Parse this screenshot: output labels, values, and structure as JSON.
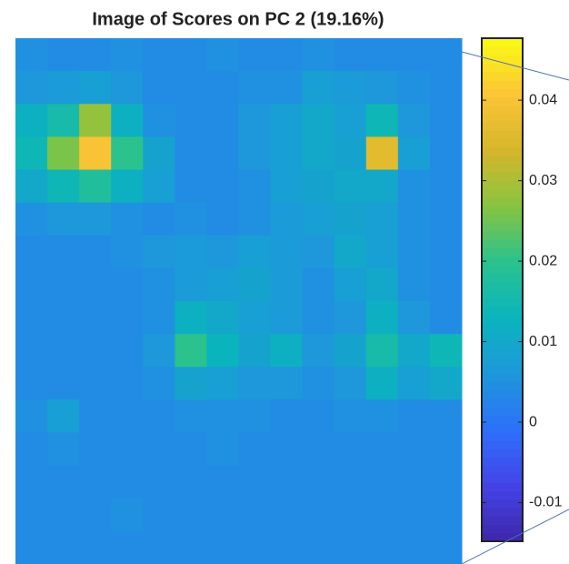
{
  "chart_data": {
    "type": "heatmap",
    "title": "Image of Scores on PC 2 (19.16%)",
    "colormap": [
      "#3e26a8",
      "#4443e9",
      "#2d70fa",
      "#1e97db",
      "#0ab4bd",
      "#2ac28e",
      "#87c440",
      "#d6b62b",
      "#fcc536",
      "#f9fb15"
    ],
    "values": [
      [
        0.005,
        0.004,
        0.004,
        0.005,
        0.004,
        0.004,
        0.005,
        0.004,
        0.004,
        0.005,
        0.004,
        0.004,
        0.004,
        0.004
      ],
      [
        0.006,
        0.007,
        0.008,
        0.006,
        0.004,
        0.004,
        0.004,
        0.005,
        0.005,
        0.008,
        0.007,
        0.006,
        0.005,
        0.004
      ],
      [
        0.012,
        0.016,
        0.028,
        0.012,
        0.005,
        0.004,
        0.004,
        0.006,
        0.008,
        0.01,
        0.008,
        0.014,
        0.006,
        0.004
      ],
      [
        0.014,
        0.026,
        0.04,
        0.02,
        0.009,
        0.004,
        0.004,
        0.006,
        0.008,
        0.01,
        0.009,
        0.036,
        0.008,
        0.004
      ],
      [
        0.01,
        0.014,
        0.018,
        0.012,
        0.008,
        0.004,
        0.004,
        0.005,
        0.008,
        0.009,
        0.01,
        0.01,
        0.005,
        0.004
      ],
      [
        0.005,
        0.006,
        0.006,
        0.005,
        0.004,
        0.005,
        0.004,
        0.005,
        0.007,
        0.008,
        0.009,
        0.008,
        0.005,
        0.004
      ],
      [
        0.004,
        0.004,
        0.004,
        0.005,
        0.006,
        0.007,
        0.006,
        0.008,
        0.007,
        0.006,
        0.01,
        0.008,
        0.005,
        0.004
      ],
      [
        0.004,
        0.004,
        0.004,
        0.004,
        0.005,
        0.007,
        0.008,
        0.009,
        0.007,
        0.005,
        0.008,
        0.01,
        0.005,
        0.004
      ],
      [
        0.004,
        0.004,
        0.004,
        0.004,
        0.005,
        0.012,
        0.01,
        0.008,
        0.007,
        0.005,
        0.006,
        0.012,
        0.006,
        0.004
      ],
      [
        0.004,
        0.004,
        0.004,
        0.004,
        0.006,
        0.02,
        0.013,
        0.009,
        0.012,
        0.006,
        0.009,
        0.016,
        0.01,
        0.014
      ],
      [
        0.004,
        0.004,
        0.004,
        0.004,
        0.005,
        0.009,
        0.008,
        0.006,
        0.006,
        0.005,
        0.006,
        0.012,
        0.008,
        0.01
      ],
      [
        0.005,
        0.008,
        0.004,
        0.004,
        0.004,
        0.005,
        0.005,
        0.005,
        0.004,
        0.004,
        0.005,
        0.005,
        0.004,
        0.004
      ],
      [
        0.004,
        0.005,
        0.004,
        0.004,
        0.004,
        0.004,
        0.005,
        0.004,
        0.004,
        0.004,
        0.004,
        0.004,
        0.004,
        0.004
      ],
      [
        0.004,
        0.004,
        0.004,
        0.004,
        0.004,
        0.004,
        0.004,
        0.004,
        0.004,
        0.004,
        0.004,
        0.004,
        0.004,
        0.004
      ],
      [
        0.004,
        0.004,
        0.004,
        0.005,
        0.004,
        0.004,
        0.004,
        0.004,
        0.004,
        0.004,
        0.004,
        0.004,
        0.004,
        0.004
      ],
      [
        0.004,
        0.004,
        0.004,
        0.004,
        0.004,
        0.004,
        0.004,
        0.004,
        0.004,
        0.004,
        0.004,
        0.004,
        0.004,
        0.004
      ]
    ],
    "clim": [
      -0.0148,
      0.0477
    ],
    "cticks": [
      -0.01,
      0,
      0.01,
      0.02,
      0.03,
      0.04
    ]
  }
}
